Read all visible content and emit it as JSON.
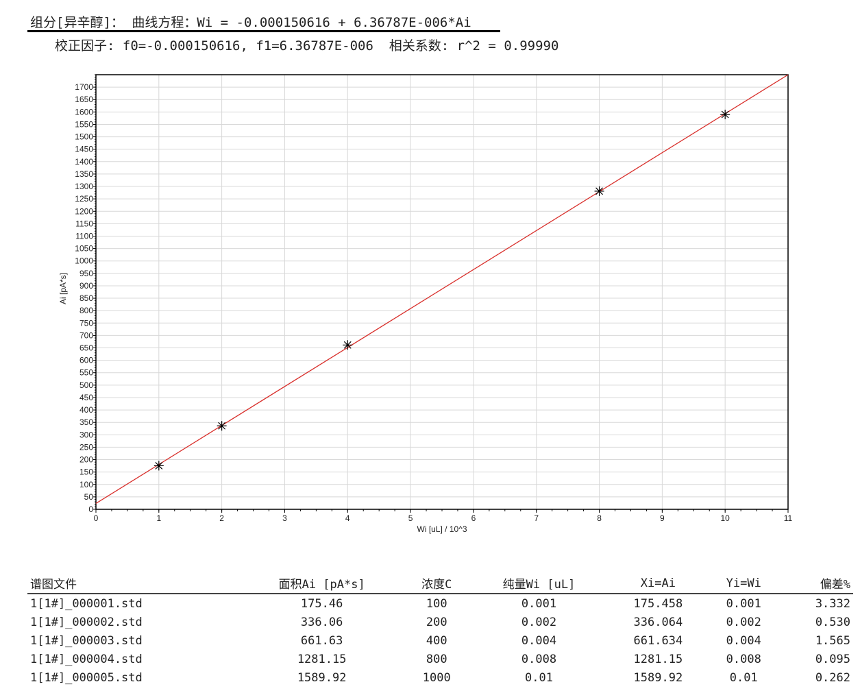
{
  "header": {
    "title": "组分[异辛醇]： 曲线方程：Wi = -0.000150616 + 6.36787E-006*Ai",
    "factors": "校正因子: f0=-0.000150616, f1=6.36787E-006  相关系数: r^2 = 0.99990"
  },
  "chart_data": {
    "type": "scatter",
    "xlabel": "Wi [uL] / 10^3",
    "ylabel": "Ai [pA*s]",
    "xlim": [
      0,
      11
    ],
    "ylim": [
      0,
      1750
    ],
    "x_ticks": [
      0,
      1,
      2,
      3,
      4,
      5,
      6,
      7,
      8,
      9,
      10,
      11
    ],
    "y_ticks": [
      0,
      50,
      100,
      150,
      200,
      250,
      300,
      350,
      400,
      450,
      500,
      550,
      600,
      650,
      700,
      750,
      800,
      850,
      900,
      950,
      1000,
      1050,
      1100,
      1150,
      1200,
      1250,
      1300,
      1350,
      1400,
      1450,
      1500,
      1550,
      1600,
      1650,
      1700
    ],
    "grid": true,
    "points": {
      "x": [
        1,
        2,
        4,
        8,
        10
      ],
      "y": [
        175.46,
        336.06,
        661.63,
        1281.15,
        1589.92
      ],
      "marker": "asterisk",
      "color": "#000000"
    },
    "fit_line": {
      "f0": -0.000150616,
      "f1": 6.36787e-06,
      "color": "#d9302c"
    }
  },
  "table": {
    "headers": [
      "谱图文件",
      "面积Ai [pA*s]",
      "浓度C",
      "纯量Wi [uL]",
      "Xi=Ai",
      "Yi=Wi",
      "偏差%"
    ],
    "rows": [
      [
        "1[1#]_000001.std",
        "175.46",
        "100",
        "0.001",
        "175.458",
        "0.001",
        "3.332"
      ],
      [
        "1[1#]_000002.std",
        "336.06",
        "200",
        "0.002",
        "336.064",
        "0.002",
        "0.530"
      ],
      [
        "1[1#]_000003.std",
        "661.63",
        "400",
        "0.004",
        "661.634",
        "0.004",
        "1.565"
      ],
      [
        "1[1#]_000004.std",
        "1281.15",
        "800",
        "0.008",
        "1281.15",
        "0.008",
        "0.095"
      ],
      [
        "1[1#]_000005.std",
        "1589.92",
        "1000",
        "0.01",
        "1589.92",
        "0.01",
        "0.262"
      ]
    ]
  }
}
